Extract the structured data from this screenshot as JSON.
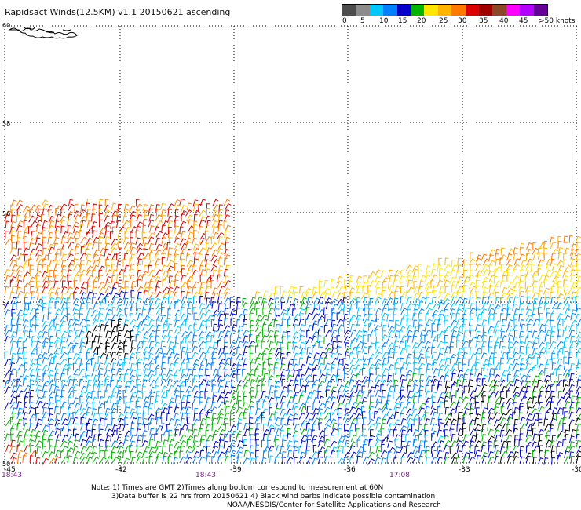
{
  "title": "Rapidsact Winds(12.5KM) v1.1 20150621 ascending",
  "legend": {
    "labels": [
      "0",
      "5",
      "10",
      "15",
      "20",
      "25",
      "30",
      "35",
      "40",
      "45",
      ">50 knots"
    ],
    "colors": [
      "#4d4d4d",
      "#8c8c8c",
      "#00c8ff",
      "#0080ff",
      "#0000c8",
      "#00b400",
      "#ffe600",
      "#ffb400",
      "#ff7800",
      "#dc0000",
      "#a00000",
      "#8c4628",
      "#ff00ff",
      "#b400ff",
      "#640096"
    ]
  },
  "axes": {
    "lat_labels": [
      "60",
      "58",
      "56",
      "54",
      "52",
      "50"
    ],
    "lon_labels": [
      "-45",
      "-42",
      "-39",
      "-36",
      "-33",
      "-30"
    ]
  },
  "times": [
    "18:43",
    "18:43",
    "17:08"
  ],
  "notes": [
    "Note: 1) Times are GMT 2)Times along bottom correspond to measurement at 60N",
    "3)Data buffer is 22 hrs from 20150621 4) Black wind barbs indicate possible contamination",
    "NOAA/NESDIS/Center for Satellite Applications and Research"
  ]
}
